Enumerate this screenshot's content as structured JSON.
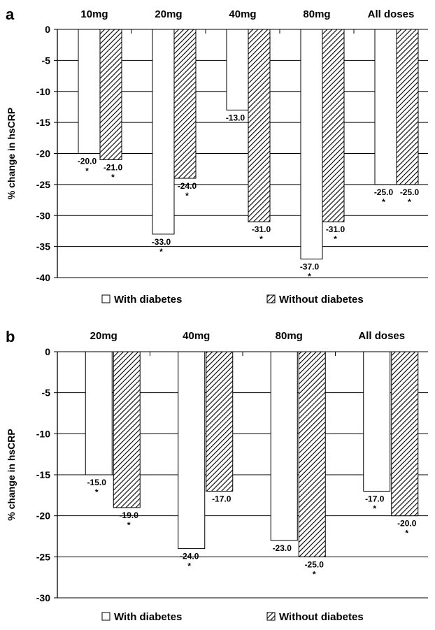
{
  "chart_data": [
    {
      "type": "bar",
      "panel": "a",
      "categories": [
        "10mg",
        "20mg",
        "40mg",
        "80mg",
        "All doses"
      ],
      "series": [
        {
          "name": "With diabetes",
          "values": [
            -20.0,
            -33.0,
            -13.0,
            -37.0,
            -25.0
          ],
          "significant": [
            true,
            true,
            false,
            true,
            true
          ],
          "pattern": "none"
        },
        {
          "name": "Without diabetes",
          "values": [
            -21.0,
            -24.0,
            -31.0,
            -31.0,
            -25.0
          ],
          "significant": [
            true,
            true,
            true,
            true,
            true
          ],
          "pattern": "diagonal-hatch"
        }
      ],
      "ylabel": "% change in hsCRP",
      "ylim": [
        -40,
        0
      ],
      "yticks": [
        "0",
        "-5",
        "-10",
        "-15",
        "-20",
        "-25",
        "-30",
        "-35",
        "-40"
      ],
      "data_labels": [
        [
          "-20.0",
          "-33.0",
          "-13.0",
          "-37.0",
          "-25.0"
        ],
        [
          "-21.0",
          "-24.0",
          "-31.0",
          "-31.0",
          "-25.0"
        ]
      ],
      "significance_marker": "*",
      "grid": true,
      "legend_position": "bottom"
    },
    {
      "type": "bar",
      "panel": "b",
      "categories": [
        "20mg",
        "40mg",
        "80mg",
        "All doses"
      ],
      "series": [
        {
          "name": "With diabetes",
          "values": [
            -15.0,
            -24.0,
            -23.0,
            -17.0
          ],
          "significant": [
            true,
            true,
            false,
            true
          ],
          "pattern": "none"
        },
        {
          "name": "Without diabetes",
          "values": [
            -19.0,
            -17.0,
            -25.0,
            -20.0
          ],
          "significant": [
            true,
            false,
            true,
            true
          ],
          "pattern": "diagonal-hatch"
        }
      ],
      "ylabel": "% change in hsCRP",
      "ylim": [
        -30,
        0
      ],
      "yticks": [
        "0",
        "-5",
        "-10",
        "-15",
        "-20",
        "-25",
        "-30"
      ],
      "data_labels": [
        [
          "-15.0",
          "-24.0",
          "-23.0",
          "-17.0"
        ],
        [
          "-19.0",
          "-17.0",
          "-25.0",
          "-20.0"
        ]
      ],
      "significance_marker": "*",
      "grid": true,
      "legend_position": "bottom"
    }
  ],
  "colors": {
    "bar_fill": "#ffffff",
    "bar_stroke": "#000000",
    "hatch": "#000000",
    "grid": "#000000"
  }
}
